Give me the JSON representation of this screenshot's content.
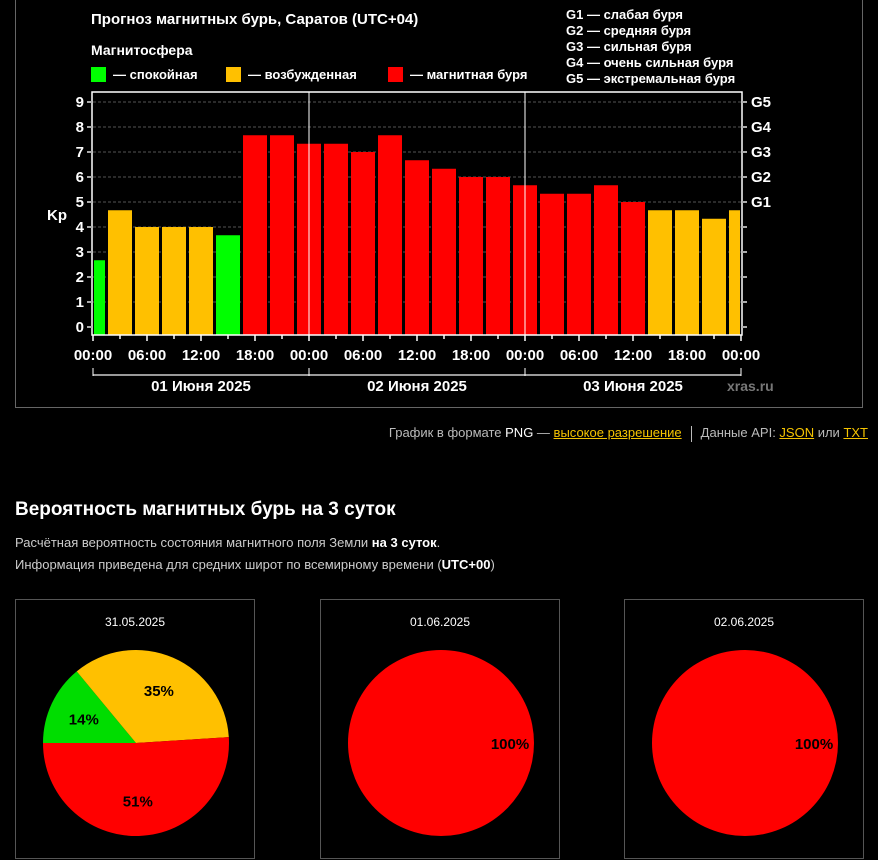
{
  "chart_title": "Прогноз магнитных бурь, Саратов (UTC+04)",
  "magnetosphere_label": "Магнитосфера",
  "legend": [
    {
      "label": "— спокойная",
      "color": "#00ff00"
    },
    {
      "label": "— возбужденная",
      "color": "#ffc000"
    },
    {
      "label": "— магнитная буря",
      "color": "#ff0000"
    }
  ],
  "g_scale_legend": [
    "G1 — слабая буря",
    "G2 — средняя буря",
    "G3 — сильная буря",
    "G4 — очень сильная буря",
    "G5 — экстремальная буря"
  ],
  "watermark": "xras.ru",
  "chart_data": {
    "type": "bar",
    "title": "Прогноз магнитных бурь, Саратов (UTC+04)",
    "ylabel": "Kp",
    "xlabel": "",
    "ylim": [
      0,
      9
    ],
    "y_ticks": [
      "0",
      "1",
      "2",
      "3",
      "4",
      "5",
      "6",
      "7",
      "8",
      "9"
    ],
    "right_ticks": [
      {
        "label": "G1",
        "kp": 5
      },
      {
        "label": "G2",
        "kp": 6
      },
      {
        "label": "G3",
        "kp": 7
      },
      {
        "label": "G4",
        "kp": 8
      },
      {
        "label": "G5",
        "kp": 9
      }
    ],
    "x_range_hours": [
      0,
      72
    ],
    "x_tick_labels": [
      "00:00",
      "06:00",
      "12:00",
      "18:00",
      "00:00",
      "06:00",
      "12:00",
      "18:00",
      "00:00",
      "06:00",
      "12:00",
      "18:00",
      "00:00"
    ],
    "day_labels": [
      "01 Июня 2025",
      "02 Июня 2025",
      "03 Июня 2025"
    ],
    "grid": true,
    "bar_center_hours": [
      0,
      3,
      6,
      9,
      12,
      15,
      18,
      21,
      24,
      27,
      30,
      33,
      36,
      39,
      42,
      45,
      48,
      51,
      54,
      57,
      60,
      63,
      66,
      69,
      72
    ],
    "values": [
      2.67,
      4.67,
      4.0,
      4.0,
      4.0,
      3.67,
      7.67,
      7.67,
      7.33,
      7.33,
      7.0,
      7.67,
      6.67,
      6.33,
      6.0,
      6.0,
      5.67,
      5.33,
      5.33,
      5.67,
      5.0,
      4.67,
      4.67,
      4.33,
      4.67
    ],
    "colors": {
      "quiet": "#00ff00",
      "active": "#ffc000",
      "storm": "#ff0000"
    },
    "categories": [
      "quiet",
      "active",
      "active",
      "active",
      "active",
      "quiet",
      "storm",
      "storm",
      "storm",
      "storm",
      "storm",
      "storm",
      "storm",
      "storm",
      "storm",
      "storm",
      "storm",
      "storm",
      "storm",
      "storm",
      "storm",
      "active",
      "active",
      "active",
      "active"
    ]
  },
  "links": {
    "png_prefix": "График в формате ",
    "png_word": "PNG",
    "png_dash": " — ",
    "high_res": "высокое разрешение",
    "api_prefix": "Данные API: ",
    "json": "JSON",
    "or": " или ",
    "txt": "TXT"
  },
  "probability": {
    "title": "Вероятность магнитных бурь на 3 суток",
    "desc1_prefix": "Расчётная вероятность состояния магнитного поля Земли ",
    "desc1_bold": "на 3 суток",
    "desc1_suffix": ".",
    "desc2_prefix": "Информация приведена для средних широт по всемирному времени (",
    "desc2_bold": "UTC+00",
    "desc2_suffix": ")",
    "pies": [
      {
        "date": "31.05.2025",
        "slices": [
          {
            "name": "quiet",
            "value": 14,
            "label": "14%",
            "color": "#00dd00"
          },
          {
            "name": "active",
            "value": 35,
            "label": "35%",
            "color": "#ffc000"
          },
          {
            "name": "storm",
            "value": 51,
            "label": "51%",
            "color": "#ff0000"
          }
        ]
      },
      {
        "date": "01.06.2025",
        "slices": [
          {
            "name": "storm",
            "value": 100,
            "label": "100%",
            "color": "#ff0000"
          }
        ]
      },
      {
        "date": "02.06.2025",
        "slices": [
          {
            "name": "storm",
            "value": 100,
            "label": "100%",
            "color": "#ff0000"
          }
        ]
      }
    ]
  }
}
